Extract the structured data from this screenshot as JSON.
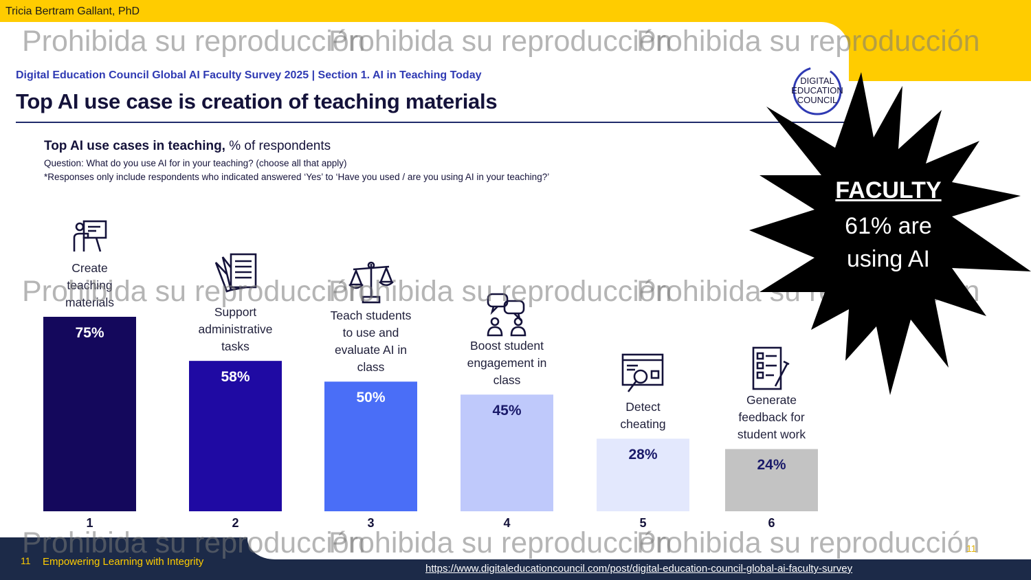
{
  "header": {
    "author": "Tricia Bertram Gallant, PhD",
    "subtitle": "Digital Education Council Global AI Faculty Survey 2025 | Section 1. AI in Teaching Today",
    "headline": "Top AI use case is creation of teaching materials",
    "logo_lines": [
      "DIGITAL",
      "EDUCATION",
      "COUNCIL"
    ]
  },
  "chart_header": {
    "title_bold": "Top AI use cases in teaching,",
    "title_rest": " % of respondents",
    "question": "Question: What do you use AI for in your teaching? (choose all that apply)",
    "note": "*Responses only include respondents who indicated answered ‘Yes’ to ‘Have you used / are you using AI in your teaching?’"
  },
  "chart_data": {
    "type": "bar",
    "categories": [
      "1",
      "2",
      "3",
      "4",
      "5",
      "6"
    ],
    "category_descriptions": [
      "Create teaching materials",
      "Support administrative tasks",
      "Teach students to use and evaluate AI in class",
      "Boost student engagement in class",
      "Detect cheating",
      "Generate feedback for student work"
    ],
    "values": [
      75,
      58,
      50,
      45,
      28,
      24
    ],
    "value_labels": [
      "75%",
      "58%",
      "50%",
      "45%",
      "28%",
      "24%"
    ],
    "bar_colors": [
      "#14085c",
      "#1f0aa3",
      "#4a6ef7",
      "#bfc9fb",
      "#e3e8fd",
      "#c3c3c3"
    ],
    "label_colors": [
      "#ffffff",
      "#ffffff",
      "#ffffff",
      "#1a1a6a",
      "#1a1a6a",
      "#1a1a6a"
    ],
    "title": "Top AI use cases in teaching, % of respondents",
    "xlabel": "",
    "ylabel": "",
    "ylim": [
      0,
      75
    ],
    "grid": false
  },
  "category_lines": [
    [
      "Create",
      "teaching",
      "materials"
    ],
    [
      "Support",
      "administrative",
      "tasks"
    ],
    [
      "Teach students",
      "to use and",
      "evaluate AI in",
      "class"
    ],
    [
      "Boost student",
      "engagement in",
      "class"
    ],
    [
      "Detect",
      "cheating"
    ],
    [
      "Generate",
      "feedback for",
      "student work"
    ]
  ],
  "icons": [
    "presentation-icon",
    "documents-icon",
    "scales-icon",
    "discussion-icon",
    "detect-cheating-icon",
    "checklist-icon"
  ],
  "burst": {
    "title": "FACULTY",
    "line1": "61% are",
    "line2": "using AI",
    "color": "#000000"
  },
  "watermark": "Prohibida su reproducción",
  "footer": {
    "page_number": "11",
    "tagline": "Empowering Learning with Integrity",
    "slide_number": "11",
    "source_url": "https://www.digitaleducationcouncil.com/post/digital-education-council-global-ai-faculty-survey"
  },
  "colors": {
    "accent_yellow": "#ffcc00",
    "navy": "#1c2a48",
    "title_blue": "#2f3ab3"
  }
}
